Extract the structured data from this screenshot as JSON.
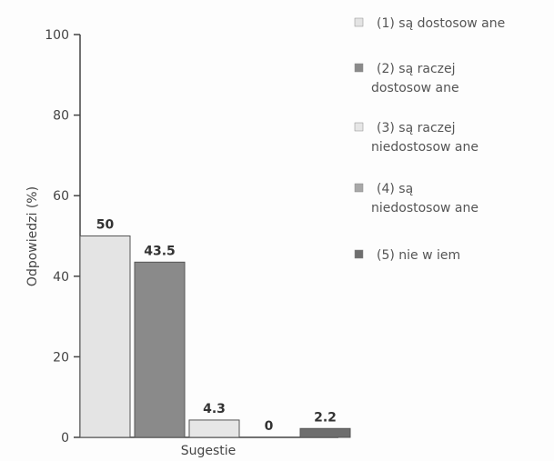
{
  "chart_data": {
    "type": "bar",
    "categories": [
      "Sugestie"
    ],
    "series": [
      {
        "name": "(1) są dostosow ane",
        "values": [
          50
        ],
        "label": "50",
        "color": "#e4e4e4"
      },
      {
        "name": "(2) są raczej dostosow ane",
        "values": [
          43.5
        ],
        "label": "43.5",
        "color": "#8a8a8a"
      },
      {
        "name": "(3) są raczej niedostosow ane",
        "values": [
          4.3
        ],
        "label": "4.3",
        "color": "#e6e6e6"
      },
      {
        "name": "(4) są niedostosow ane",
        "values": [
          0
        ],
        "label": "0",
        "color": "#a8a8a8"
      },
      {
        "name": "(5) nie w iem",
        "values": [
          2.2
        ],
        "label": "2.2",
        "color": "#6e6e6e"
      }
    ],
    "legend": [
      {
        "lines": [
          "(1) są dostosow ane"
        ]
      },
      {
        "lines": [
          "(2) są raczej",
          "dostosow ane"
        ]
      },
      {
        "lines": [
          "(3) są raczej",
          "niedostosow ane"
        ]
      },
      {
        "lines": [
          "(4) są",
          "niedostosow ane"
        ]
      },
      {
        "lines": [
          "(5) nie w iem"
        ]
      }
    ],
    "xlabel": "Sugestie",
    "ylabel": "Odpowiedzi (%)",
    "ylim": [
      0,
      100
    ],
    "yticks": [
      "0",
      "20",
      "40",
      "60",
      "80",
      "100"
    ],
    "legend_position": "right",
    "grid": false
  }
}
